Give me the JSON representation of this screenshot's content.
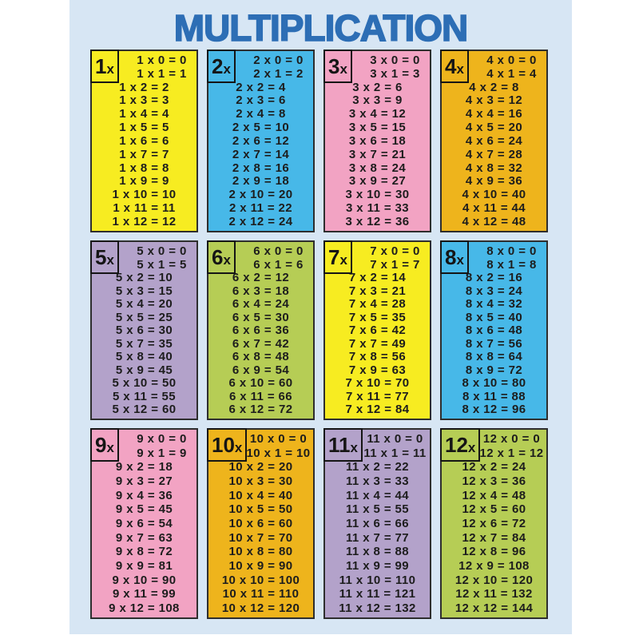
{
  "page": {
    "title": "MULTIPLICATION",
    "background_color": "#ffffff",
    "page_color": "#d7e6f4",
    "title_color": "#2d6eb5",
    "text_color": "#1d1d1d",
    "panel_border_color": "#2e2e2e"
  },
  "tables": [
    {
      "label": "1x",
      "label_factor": "1",
      "label_x": "x",
      "color": "#f7ec21",
      "rows": [
        "1 x 0 = 0",
        "1 x 1 = 1",
        "1 x 2 = 2",
        "1 x 3 = 3",
        "1 x 4 = 4",
        "1 x 5 = 5",
        "1 x 6 = 6",
        "1 x 7 = 7",
        "1 x 8 = 8",
        "1 x 9 = 9",
        "1 x 10 = 10",
        "1 x 11 = 11",
        "1 x 12 = 12"
      ]
    },
    {
      "label": "2x",
      "label_factor": "2",
      "label_x": "x",
      "color": "#47b8e8",
      "rows": [
        "2 x 0 = 0",
        "2 x 1 = 2",
        "2 x 2 = 4",
        "2 x 3 = 6",
        "2 x 4 = 8",
        "2 x 5 = 10",
        "2 x 6 = 12",
        "2 x 7 = 14",
        "2 x 8 = 16",
        "2 x 9 = 18",
        "2 x 10 = 20",
        "2 x 11 = 22",
        "2 x 12 = 24"
      ]
    },
    {
      "label": "3x",
      "label_factor": "3",
      "label_x": "x",
      "color": "#f2a3c3",
      "rows": [
        "3 x 0 = 0",
        "3 x 1 = 3",
        "3 x 2 = 6",
        "3 x 3 = 9",
        "3 x 4 = 12",
        "3 x 5 = 15",
        "3 x 6 = 18",
        "3 x 7 = 21",
        "3 x 8 = 24",
        "3 x 9 = 27",
        "3 x 10 = 30",
        "3 x 11 = 33",
        "3 x 12 = 36"
      ]
    },
    {
      "label": "4x",
      "label_factor": "4",
      "label_x": "x",
      "color": "#eeb41c",
      "rows": [
        "4 x 0 = 0",
        "4 x 1 = 4",
        "4 x 2 = 8",
        "4 x 3 = 12",
        "4 x 4 = 16",
        "4 x 5 = 20",
        "4 x 6 = 24",
        "4 x 7 = 28",
        "4 x 8 = 32",
        "4 x 9 = 36",
        "4 x 10 = 40",
        "4 x 11 = 44",
        "4 x 12 = 48"
      ]
    },
    {
      "label": "5x",
      "label_factor": "5",
      "label_x": "x",
      "color": "#b3a2ca",
      "rows": [
        "5 x 0 = 0",
        "5 x 1 = 5",
        "5 x 2 = 10",
        "5 x 3 = 15",
        "5 x 4 = 20",
        "5 x 5 = 25",
        "5 x 6 = 30",
        "5 x 7 = 35",
        "5 x 8 = 40",
        "5 x 9 = 45",
        "5 x 10 = 50",
        "5 x 11 = 55",
        "5 x 12 = 60"
      ]
    },
    {
      "label": "6x",
      "label_factor": "6",
      "label_x": "x",
      "color": "#b6cd55",
      "rows": [
        "6 x 0 = 0",
        "6 x 1 = 6",
        "6 x 2 = 12",
        "6 x 3 = 18",
        "6 x 4 = 24",
        "6 x 5 = 30",
        "6 x 6 = 36",
        "6 x 7 = 42",
        "6 x 8 = 48",
        "6 x 9 = 54",
        "6 x 10 = 60",
        "6 x 11 = 66",
        "6 x 12 = 72"
      ]
    },
    {
      "label": "7x",
      "label_factor": "7",
      "label_x": "x",
      "color": "#f7ec21",
      "rows": [
        "7 x 0 = 0",
        "7 x 1 = 7",
        "7 x 2 = 14",
        "7 x 3 = 21",
        "7 x 4 = 28",
        "7 x 5 = 35",
        "7 x 6 = 42",
        "7 x 7 = 49",
        "7 x 8 = 56",
        "7 x 9 = 63",
        "7 x 10 = 70",
        "7 x 11 = 77",
        "7 x 12 = 84"
      ]
    },
    {
      "label": "8x",
      "label_factor": "8",
      "label_x": "x",
      "color": "#47b8e8",
      "rows": [
        "8 x 0 = 0",
        "8 x 1 = 8",
        "8 x 2 = 16",
        "8 x 3 = 24",
        "8 x 4 = 32",
        "8 x 5 = 40",
        "8 x 6 = 48",
        "8 x 7 = 56",
        "8 x 8 = 64",
        "8 x 9 = 72",
        "8 x 10 = 80",
        "8 x 11 = 88",
        "8 x 12 = 96"
      ]
    },
    {
      "label": "9x",
      "label_factor": "9",
      "label_x": "x",
      "color": "#f2a3c3",
      "rows": [
        "9 x 0 = 0",
        "9 x 1 = 9",
        "9 x 2 = 18",
        "9 x 3 = 27",
        "9 x 4 = 36",
        "9 x 5 = 45",
        "9 x 6 = 54",
        "9 x 7 = 63",
        "9 x 8 = 72",
        "9 x 9 = 81",
        "9 x 10 = 90",
        "9 x 11 = 99",
        "9 x 12 = 108"
      ]
    },
    {
      "label": "10x",
      "label_factor": "10",
      "label_x": "x",
      "color": "#eeb41c",
      "rows": [
        "10 x 0 = 0",
        "10 x 1 = 10",
        "10 x 2 = 20",
        "10 x 3 = 30",
        "10 x 4 = 40",
        "10 x 5 = 50",
        "10 x 6 = 60",
        "10 x 7 = 70",
        "10 x 8 = 80",
        "10 x 9 = 90",
        "10 x 10 = 100",
        "10 x 11 = 110",
        "10 x 12 = 120"
      ]
    },
    {
      "label": "11x",
      "label_factor": "11",
      "label_x": "x",
      "color": "#b3a2ca",
      "rows": [
        "11 x 0 = 0",
        "11 x 1 = 11",
        "11 x 2 = 22",
        "11 x 3 = 33",
        "11 x 4 = 44",
        "11 x 5 = 55",
        "11 x 6 = 66",
        "11 x 7 = 77",
        "11 x 8 = 88",
        "11 x 9 = 99",
        "11 x 10 = 110",
        "11 x 11 = 121",
        "11 x 12 = 132"
      ]
    },
    {
      "label": "12x",
      "label_factor": "12",
      "label_x": "x",
      "color": "#b6cd55",
      "rows": [
        "12 x 0 = 0",
        "12 x 1 = 12",
        "12 x 2 = 24",
        "12 x 3 = 36",
        "12 x 4 = 48",
        "12 x 5 = 60",
        "12 x 6 = 72",
        "12 x 7 = 84",
        "12 x 8 = 96",
        "12 x 9 = 108",
        "12 x 10 = 120",
        "12 x 11 = 132",
        "12 x 12 = 144"
      ]
    }
  ]
}
